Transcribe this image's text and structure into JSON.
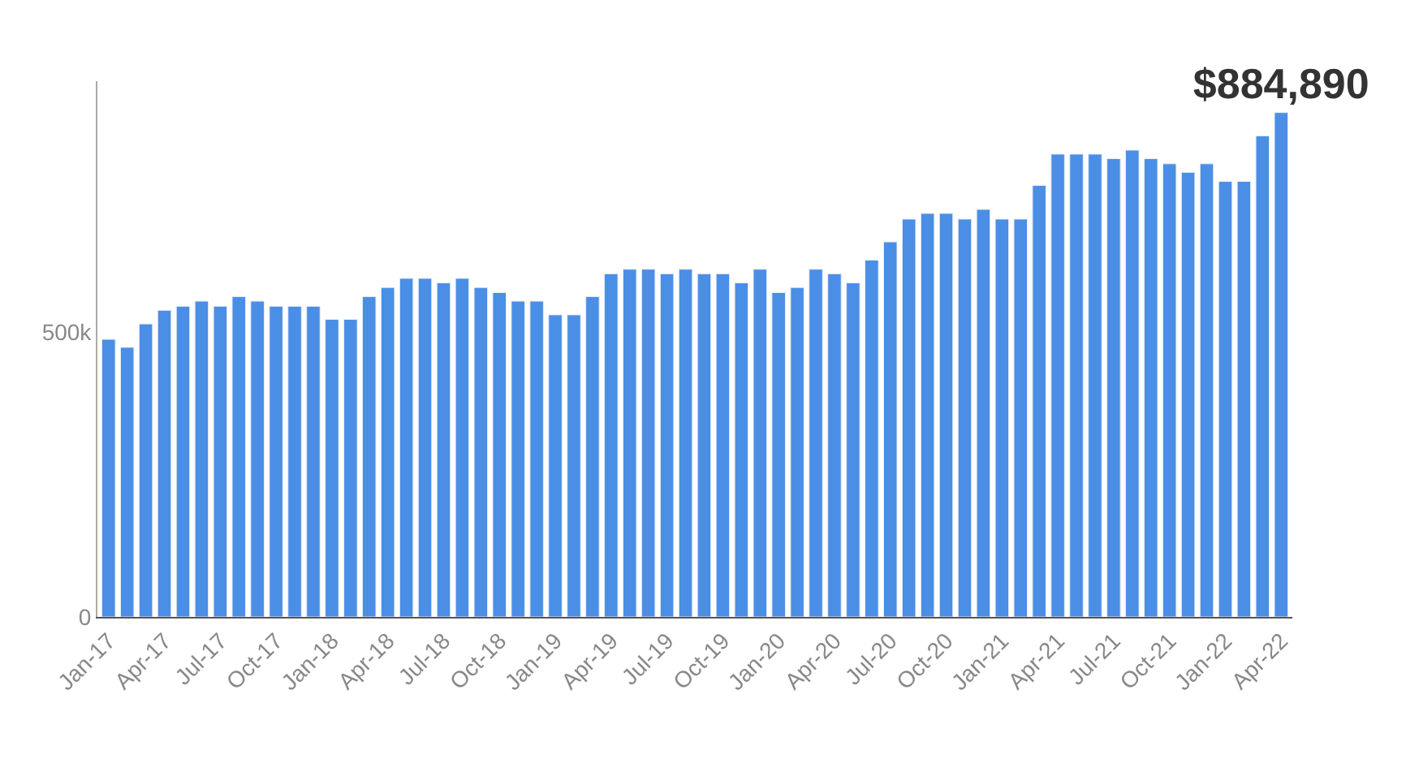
{
  "chart_data": {
    "type": "bar",
    "categories": [
      "Jan-17",
      null,
      null,
      "Apr-17",
      null,
      null,
      "Jul-17",
      null,
      null,
      "Oct-17",
      null,
      null,
      "Jan-18",
      null,
      null,
      "Apr-18",
      null,
      null,
      "Jul-18",
      null,
      null,
      "Oct-18",
      null,
      null,
      "Jan-19",
      null,
      null,
      "Apr-19",
      null,
      null,
      "Jul-19",
      null,
      null,
      "Oct-19",
      null,
      null,
      "Jan-20",
      null,
      null,
      "Apr-20",
      null,
      null,
      "Jul-20",
      null,
      null,
      "Oct-20",
      null,
      null,
      "Jan-21",
      null,
      null,
      "Apr-21",
      null,
      null,
      "Jul-21",
      null,
      null,
      "Oct-21",
      null,
      null,
      "Jan-22",
      null,
      null,
      "Apr-22"
    ],
    "values": [
      487000,
      473000,
      514000,
      538000,
      545000,
      554000,
      545000,
      562000,
      554000,
      545000,
      545000,
      545000,
      522000,
      522000,
      562000,
      578000,
      594000,
      594000,
      586000,
      594000,
      578000,
      569000,
      554000,
      554000,
      530000,
      530000,
      562000,
      602000,
      610000,
      610000,
      602000,
      610000,
      602000,
      602000,
      586000,
      610000,
      569000,
      578000,
      610000,
      602000,
      586000,
      626000,
      658000,
      698000,
      708000,
      708000,
      698000,
      715000,
      698000,
      698000,
      757000,
      812000,
      812000,
      812000,
      804000,
      819000,
      804000,
      795000,
      780000,
      795000,
      764000,
      764000,
      844000,
      884890
    ],
    "value_labels": [
      null,
      null,
      null,
      null,
      null,
      null,
      null,
      null,
      null,
      null,
      null,
      null,
      null,
      null,
      null,
      null,
      null,
      null,
      null,
      null,
      null,
      null,
      null,
      null,
      null,
      null,
      null,
      null,
      null,
      null,
      null,
      null,
      null,
      null,
      null,
      null,
      null,
      null,
      null,
      null,
      null,
      null,
      null,
      null,
      null,
      null,
      null,
      null,
      null,
      null,
      null,
      null,
      null,
      null,
      null,
      null,
      null,
      null,
      null,
      null,
      null,
      null,
      null,
      "$884,890"
    ],
    "color": "#4a8ee6",
    "ylim": [
      0,
      940000
    ],
    "yticks": [
      0,
      {
        "value": 500000,
        "label": "500k"
      }
    ]
  }
}
